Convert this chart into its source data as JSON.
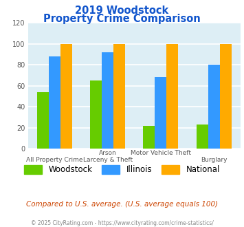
{
  "title_line1": "2019 Woodstock",
  "title_line2": "Property Crime Comparison",
  "x_labels_top": [
    "",
    "Arson",
    "Motor Vehicle Theft",
    ""
  ],
  "x_labels_bottom": [
    "All Property Crime",
    "Larceny & Theft",
    "",
    "Burglary"
  ],
  "woodstock": [
    54,
    65,
    22,
    23
  ],
  "illinois": [
    88,
    92,
    68,
    80
  ],
  "national": [
    100,
    100,
    100,
    100
  ],
  "woodstock_color": "#66cc00",
  "illinois_color": "#3399ff",
  "national_color": "#ffaa00",
  "plot_bg_color": "#ddeef5",
  "ylim": [
    0,
    120
  ],
  "yticks": [
    0,
    20,
    40,
    60,
    80,
    100,
    120
  ],
  "legend_labels": [
    "Woodstock",
    "Illinois",
    "National"
  ],
  "footer_text": "Compared to U.S. average. (U.S. average equals 100)",
  "copyright_text": "© 2025 CityRating.com - https://www.cityrating.com/crime-statistics/",
  "title_color": "#1155cc",
  "footer_color": "#cc4400",
  "copyright_color": "#888888",
  "grid_color": "#ffffff",
  "bar_width": 0.22
}
